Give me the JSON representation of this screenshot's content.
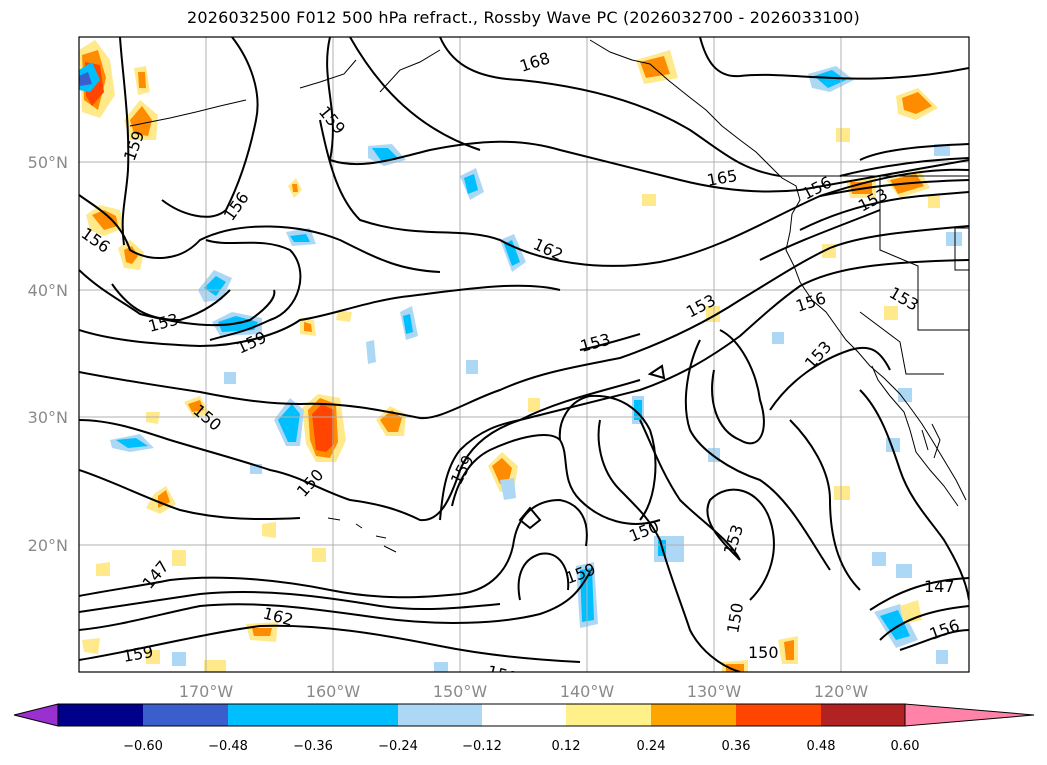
{
  "title": "2026032500 F012 500 hPa refract., Rossby Wave PC (2026032700 - 2026033100)",
  "lat_labels": [
    "50°N",
    "40°N",
    "30°N",
    "20°N"
  ],
  "lon_labels": [
    "170°W",
    "160°W",
    "150°W",
    "140°W",
    "130°W",
    "120°W"
  ],
  "contour_labels": [
    "168",
    "159",
    "159",
    "156",
    "165",
    "156",
    "153",
    "156",
    "162",
    "153",
    "156",
    "153",
    "159",
    "153",
    "153",
    "153",
    "150",
    "159",
    "150",
    "153",
    "159",
    "150",
    "147",
    "162",
    "159",
    "150",
    "147",
    "150",
    "156",
    "150"
  ],
  "colorbar": {
    "ticks": [
      "−0.60",
      "−0.48",
      "−0.36",
      "−0.24",
      "−0.12",
      "0.12",
      "0.24",
      "0.36",
      "0.48",
      "0.60"
    ],
    "colors": [
      "#9b30d0",
      "#00008b",
      "#3a5fcd",
      "#00bfff",
      "#add8f5",
      "#ffffff",
      "#fff08a",
      "#ffa500",
      "#ff4500",
      "#b22222",
      "#ff82a8"
    ]
  }
}
